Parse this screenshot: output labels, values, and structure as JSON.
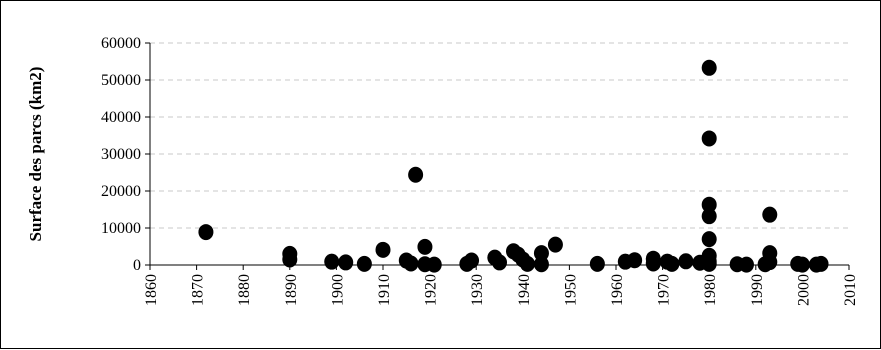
{
  "chart_data": {
    "type": "scatter",
    "title": "",
    "xlabel": "",
    "ylabel": "Surface des parcs (km2)",
    "xlim": [
      1860,
      2010
    ],
    "ylim": [
      0,
      60000
    ],
    "x_ticks": [
      1860,
      1870,
      1880,
      1890,
      1900,
      1910,
      1920,
      1930,
      1940,
      1950,
      1960,
      1970,
      1980,
      1990,
      2000,
      2010
    ],
    "y_ticks": [
      0,
      10000,
      20000,
      30000,
      40000,
      50000,
      60000
    ],
    "x_tick_labels": [
      "1860",
      "1870",
      "1880",
      "1890",
      "1900",
      "1910",
      "1920",
      "1930",
      "1940",
      "1950",
      "1960",
      "1970",
      "1980",
      "1990",
      "2000",
      "2010"
    ],
    "y_tick_labels": [
      "0",
      "10000",
      "20000",
      "30000",
      "40000",
      "50000",
      "60000"
    ],
    "grid": {
      "horizontal": true,
      "vertical": false,
      "style": "dashed"
    },
    "legend": "none",
    "marker_color": "#000000",
    "series": [
      {
        "points": [
          [
            1872,
            8900
          ],
          [
            1890,
            3000
          ],
          [
            1890,
            1500
          ],
          [
            1899,
            900
          ],
          [
            1902,
            700
          ],
          [
            1906,
            300
          ],
          [
            1910,
            4100
          ],
          [
            1915,
            1200
          ],
          [
            1916,
            400
          ],
          [
            1917,
            24400
          ],
          [
            1919,
            4900
          ],
          [
            1919,
            200
          ],
          [
            1921,
            100
          ],
          [
            1928,
            300
          ],
          [
            1929,
            1200
          ],
          [
            1934,
            2000
          ],
          [
            1935,
            700
          ],
          [
            1938,
            3700
          ],
          [
            1939,
            2800
          ],
          [
            1940,
            1500
          ],
          [
            1941,
            300
          ],
          [
            1944,
            3200
          ],
          [
            1944,
            200
          ],
          [
            1947,
            5500
          ],
          [
            1956,
            300
          ],
          [
            1962,
            900
          ],
          [
            1964,
            1300
          ],
          [
            1968,
            1700
          ],
          [
            1968,
            400
          ],
          [
            1971,
            900
          ],
          [
            1972,
            300
          ],
          [
            1975,
            1000
          ],
          [
            1978,
            600
          ],
          [
            1980,
            53300
          ],
          [
            1980,
            34200
          ],
          [
            1980,
            16300
          ],
          [
            1980,
            13200
          ],
          [
            1980,
            7000
          ],
          [
            1980,
            2500
          ],
          [
            1980,
            1000
          ],
          [
            1980,
            300
          ],
          [
            1986,
            200
          ],
          [
            1988,
            100
          ],
          [
            1992,
            200
          ],
          [
            1993,
            13600
          ],
          [
            1993,
            3200
          ],
          [
            1993,
            800
          ],
          [
            1999,
            300
          ],
          [
            2000,
            100
          ],
          [
            2003,
            100
          ],
          [
            2004,
            300
          ]
        ]
      }
    ]
  }
}
